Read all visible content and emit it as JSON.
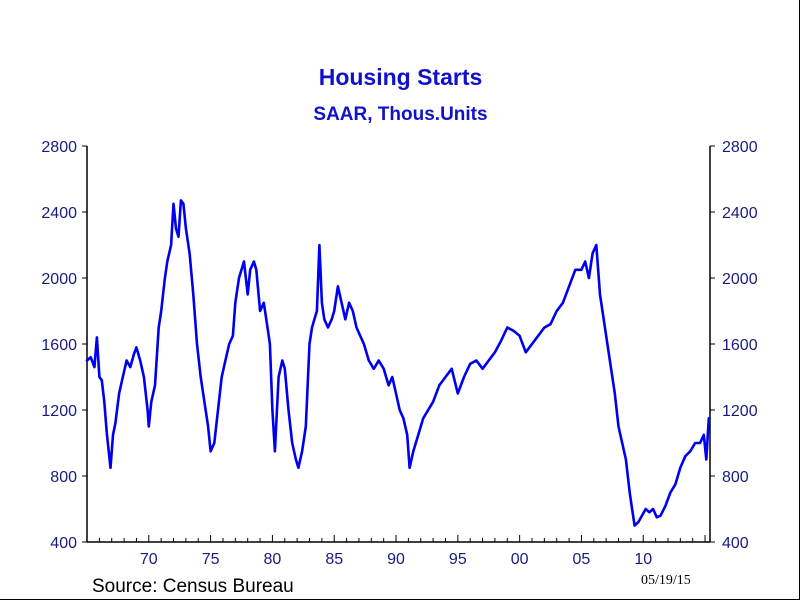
{
  "chart_data": {
    "type": "line",
    "title": "Housing Starts",
    "subtitle": "SAAR, Thous.Units",
    "xlabel": "",
    "ylabel": "",
    "ylim": [
      400,
      2800
    ],
    "yticks": [
      "2800",
      "2400",
      "2000",
      "1600",
      "1200",
      "800",
      "400"
    ],
    "xlim": [
      1965,
      2015.4
    ],
    "xticks": [
      "70",
      "75",
      "80",
      "85",
      "90",
      "95",
      "00",
      "05",
      "10"
    ],
    "xtick_values": [
      1970,
      1975,
      1980,
      1985,
      1990,
      1995,
      2000,
      2005,
      2010
    ],
    "grid": false,
    "series": [
      {
        "name": "Housing Starts",
        "color": "#0000ee",
        "x": [
          1965.0,
          1965.3,
          1965.6,
          1965.8,
          1966.0,
          1966.2,
          1966.4,
          1966.6,
          1966.9,
          1967.1,
          1967.3,
          1967.6,
          1967.9,
          1968.2,
          1968.5,
          1968.8,
          1969.0,
          1969.3,
          1969.6,
          1969.9,
          1970.0,
          1970.2,
          1970.5,
          1970.8,
          1971.0,
          1971.3,
          1971.5,
          1971.8,
          1972.0,
          1972.2,
          1972.4,
          1972.6,
          1972.8,
          1973.0,
          1973.3,
          1973.6,
          1973.9,
          1974.2,
          1974.5,
          1974.8,
          1975.0,
          1975.3,
          1975.6,
          1975.9,
          1976.2,
          1976.5,
          1976.8,
          1977.0,
          1977.3,
          1977.5,
          1977.7,
          1978.0,
          1978.2,
          1978.5,
          1978.7,
          1979.0,
          1979.3,
          1979.6,
          1979.8,
          1980.0,
          1980.2,
          1980.5,
          1980.8,
          1981.0,
          1981.3,
          1981.6,
          1981.9,
          1982.1,
          1982.4,
          1982.7,
          1983.0,
          1983.2,
          1983.4,
          1983.6,
          1983.8,
          1984.0,
          1984.2,
          1984.5,
          1984.8,
          1985.0,
          1985.3,
          1985.6,
          1985.9,
          1986.2,
          1986.5,
          1986.8,
          1987.1,
          1987.4,
          1987.8,
          1988.2,
          1988.6,
          1989.0,
          1989.4,
          1989.7,
          1990.0,
          1990.3,
          1990.6,
          1990.9,
          1991.1,
          1991.4,
          1991.8,
          1992.2,
          1992.6,
          1993.0,
          1993.5,
          1994.0,
          1994.5,
          1995.0,
          1995.5,
          1996.0,
          1996.5,
          1997.0,
          1997.5,
          1998.0,
          1998.5,
          1999.0,
          1999.5,
          2000.0,
          2000.5,
          2001.0,
          2001.5,
          2002.0,
          2002.5,
          2003.0,
          2003.5,
          2004.0,
          2004.5,
          2005.0,
          2005.3,
          2005.6,
          2005.9,
          2006.2,
          2006.5,
          2006.8,
          2007.1,
          2007.4,
          2007.7,
          2008.0,
          2008.3,
          2008.6,
          2008.9,
          2009.1,
          2009.3,
          2009.6,
          2009.9,
          2010.2,
          2010.5,
          2010.8,
          2011.1,
          2011.4,
          2011.8,
          2012.2,
          2012.6,
          2013.0,
          2013.4,
          2013.8,
          2014.2,
          2014.6,
          2014.9,
          2015.1,
          2015.3
        ],
        "values": [
          1500,
          1520,
          1460,
          1640,
          1400,
          1380,
          1250,
          1060,
          850,
          1050,
          1120,
          1300,
          1400,
          1500,
          1460,
          1540,
          1580,
          1500,
          1400,
          1200,
          1100,
          1250,
          1350,
          1700,
          1800,
          2000,
          2100,
          2200,
          2450,
          2300,
          2250,
          2470,
          2450,
          2300,
          2150,
          1900,
          1600,
          1400,
          1250,
          1100,
          950,
          1000,
          1200,
          1400,
          1500,
          1600,
          1650,
          1850,
          2000,
          2050,
          2100,
          1900,
          2050,
          2100,
          2050,
          1800,
          1850,
          1700,
          1600,
          1200,
          950,
          1400,
          1500,
          1450,
          1200,
          1000,
          900,
          850,
          950,
          1100,
          1600,
          1700,
          1750,
          1800,
          2200,
          1850,
          1750,
          1700,
          1750,
          1800,
          1950,
          1850,
          1750,
          1850,
          1800,
          1700,
          1650,
          1600,
          1500,
          1450,
          1500,
          1450,
          1350,
          1400,
          1300,
          1200,
          1150,
          1050,
          850,
          950,
          1050,
          1150,
          1200,
          1250,
          1350,
          1400,
          1450,
          1300,
          1400,
          1480,
          1500,
          1450,
          1500,
          1550,
          1620,
          1700,
          1680,
          1650,
          1550,
          1600,
          1650,
          1700,
          1720,
          1800,
          1850,
          1950,
          2050,
          2050,
          2100,
          2000,
          2150,
          2200,
          1900,
          1750,
          1600,
          1450,
          1300,
          1100,
          1000,
          900,
          700,
          600,
          500,
          520,
          560,
          600,
          580,
          600,
          550,
          560,
          620,
          700,
          750,
          850,
          920,
          950,
          1000,
          1000,
          1050,
          900,
          1150
        ]
      }
    ],
    "source": "Source:  Census Bureau",
    "date": "05/19/15"
  }
}
